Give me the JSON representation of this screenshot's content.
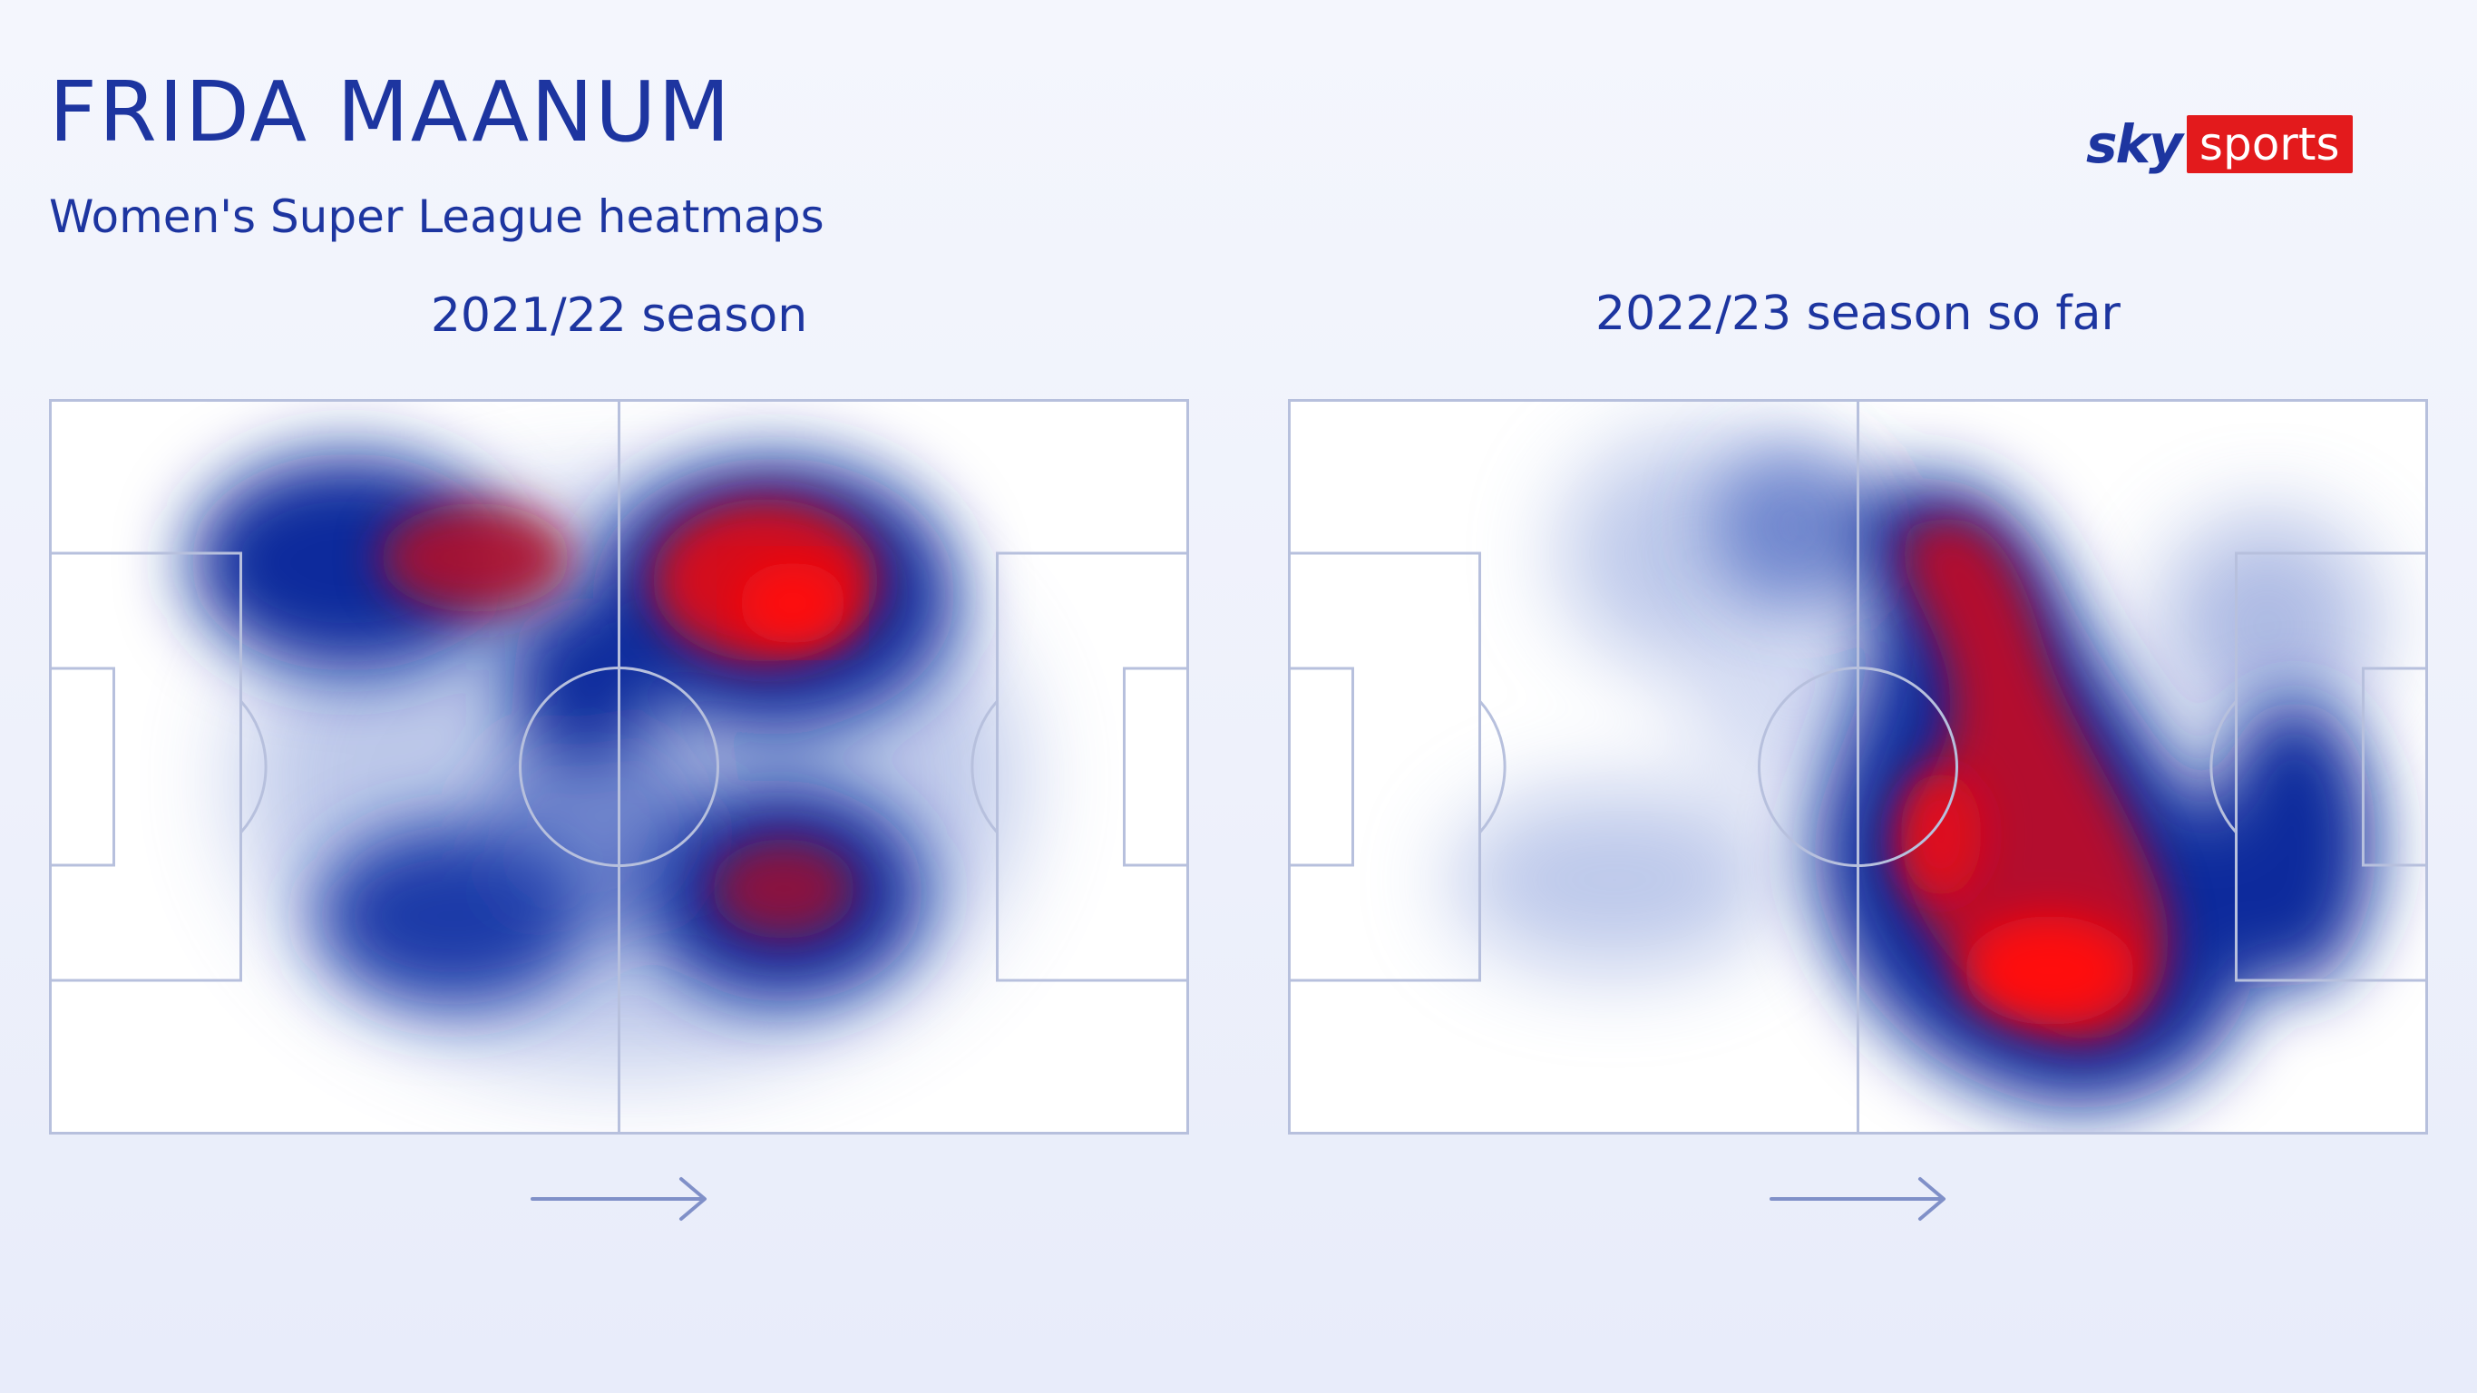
{
  "header": {
    "title": "FRIDA MAANUM",
    "subtitle": "Women's Super League heatmaps"
  },
  "logo": {
    "sky": "sky",
    "sports": "sports"
  },
  "heatmaps": [
    {
      "season_label": "2021/22 season"
    },
    {
      "season_label": "2022/23 season so far"
    }
  ],
  "colors": {
    "title": "#1d35a0",
    "heat_low": "#0a2aa0",
    "heat_high": "#ff0000",
    "pitch_lines": "#b7c0dd",
    "logo_red": "#e31a1c"
  },
  "icons": [
    "attacking-direction-arrow-icon"
  ]
}
